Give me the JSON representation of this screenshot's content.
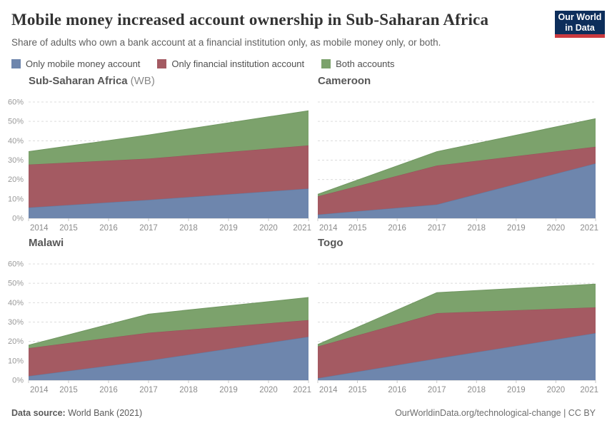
{
  "header": {
    "title": "Mobile money increased account ownership in Sub-Saharan Africa",
    "subtitle": "Share of adults who own a bank account at a financial institution only, as mobile money only, or both.",
    "logo": {
      "line1": "Our World",
      "line2": "in Data",
      "bg": "#0d2e5b",
      "accent": "#cb3a3f"
    }
  },
  "legend": {
    "items": [
      {
        "label": "Only mobile money account",
        "color": "#6e86ad"
      },
      {
        "label": "Only financial institution account",
        "color": "#a45a62"
      },
      {
        "label": "Both accounts",
        "color": "#7ca26c"
      }
    ]
  },
  "palette": {
    "fills": [
      "#6e86ad",
      "#a45a62",
      "#7ca26c"
    ],
    "strokes": [
      "#60789f",
      "#975059",
      "#6f9660"
    ],
    "grid": "#dcdcdc",
    "baseline": "#c9c9c9",
    "tick": "#c9c9c9"
  },
  "chart_data": [
    {
      "type": "area",
      "title": "Sub-Saharan Africa",
      "title_note": "(WB)",
      "stacked": true,
      "x": [
        2014,
        2017,
        2021
      ],
      "series": [
        {
          "name": "Only mobile money account",
          "values": [
            5.5,
            9.5,
            15.3
          ]
        },
        {
          "name": "Only financial institution account",
          "values": [
            22.2,
            21.3,
            22.3
          ]
        },
        {
          "name": "Both accounts",
          "values": [
            6.7,
            12.2,
            17.9
          ]
        }
      ],
      "x_tick_labels": [
        "2014",
        "2015",
        "2016",
        "2017",
        "2018",
        "2019",
        "2020",
        "2021"
      ],
      "y_ticks": [
        {
          "value": 0,
          "label": "0%"
        },
        {
          "value": 10,
          "label": "10%"
        },
        {
          "value": 20,
          "label": "20%"
        },
        {
          "value": 30,
          "label": "30%"
        },
        {
          "value": 40,
          "label": "40%"
        },
        {
          "value": 50,
          "label": "50%"
        },
        {
          "value": 60,
          "label": "60%"
        }
      ],
      "ylim": [
        0,
        60
      ],
      "show_y_axis_labels": true,
      "grid": "dashed-horizontal"
    },
    {
      "type": "area",
      "title": "Cameroon",
      "stacked": true,
      "x": [
        2014,
        2017,
        2021
      ],
      "series": [
        {
          "name": "Only mobile money account",
          "values": [
            1.9,
            7.1,
            28.3
          ]
        },
        {
          "name": "Only financial institution account",
          "values": [
            9.4,
            20.1,
            8.6
          ]
        },
        {
          "name": "Both accounts",
          "values": [
            1.1,
            7.2,
            14.5
          ]
        }
      ],
      "x_tick_labels": [
        "2014",
        "2015",
        "2016",
        "2017",
        "2018",
        "2019",
        "2020",
        "2021"
      ],
      "y_ticks": [
        {
          "value": 0,
          "label": "0%"
        },
        {
          "value": 10,
          "label": "10%"
        },
        {
          "value": 20,
          "label": "20%"
        },
        {
          "value": 30,
          "label": "30%"
        },
        {
          "value": 40,
          "label": "40%"
        },
        {
          "value": 50,
          "label": "50%"
        },
        {
          "value": 60,
          "label": "60%"
        }
      ],
      "ylim": [
        0,
        60
      ],
      "show_y_axis_labels": false,
      "grid": "dashed-horizontal"
    },
    {
      "type": "area",
      "title": "Malawi",
      "stacked": true,
      "x": [
        2014,
        2017,
        2021
      ],
      "series": [
        {
          "name": "Only mobile money account",
          "values": [
            2.1,
            10.1,
            22.4
          ]
        },
        {
          "name": "Only financial institution account",
          "values": [
            14.4,
            14.4,
            8.6
          ]
        },
        {
          "name": "Both accounts",
          "values": [
            1.6,
            9.6,
            11.7
          ]
        }
      ],
      "x_tick_labels": [
        "2014",
        "2015",
        "2016",
        "2017",
        "2018",
        "2019",
        "2020",
        "2021"
      ],
      "y_ticks": [
        {
          "value": 0,
          "label": "0%"
        },
        {
          "value": 10,
          "label": "10%"
        },
        {
          "value": 20,
          "label": "20%"
        },
        {
          "value": 30,
          "label": "30%"
        },
        {
          "value": 40,
          "label": "40%"
        },
        {
          "value": 50,
          "label": "50%"
        },
        {
          "value": 60,
          "label": "60%"
        }
      ],
      "ylim": [
        0,
        60
      ],
      "show_y_axis_labels": true,
      "grid": "dashed-horizontal"
    },
    {
      "type": "area",
      "title": "Togo",
      "stacked": true,
      "x": [
        2014,
        2017,
        2021
      ],
      "series": [
        {
          "name": "Only mobile money account",
          "values": [
            1.0,
            11.2,
            24.3
          ]
        },
        {
          "name": "Only financial institution account",
          "values": [
            16.4,
            23.4,
            13.3
          ]
        },
        {
          "name": "Both accounts",
          "values": [
            1.0,
            10.6,
            12.0
          ]
        }
      ],
      "x_tick_labels": [
        "2014",
        "2015",
        "2016",
        "2017",
        "2018",
        "2019",
        "2020",
        "2021"
      ],
      "y_ticks": [
        {
          "value": 0,
          "label": "0%"
        },
        {
          "value": 10,
          "label": "10%"
        },
        {
          "value": 20,
          "label": "20%"
        },
        {
          "value": 30,
          "label": "30%"
        },
        {
          "value": 40,
          "label": "40%"
        },
        {
          "value": 50,
          "label": "50%"
        },
        {
          "value": 60,
          "label": "60%"
        }
      ],
      "ylim": [
        0,
        60
      ],
      "show_y_axis_labels": false,
      "grid": "dashed-horizontal"
    }
  ],
  "footer": {
    "source_label": "Data source:",
    "source_value": " World Bank (2021)",
    "right": "OurWorldinData.org/technological-change | CC BY"
  }
}
